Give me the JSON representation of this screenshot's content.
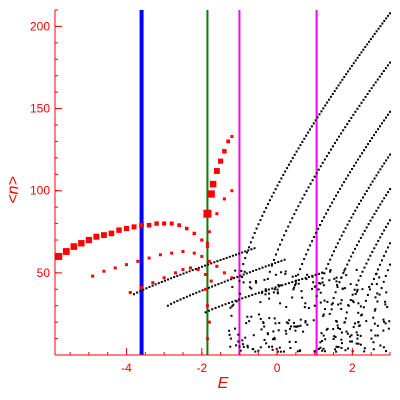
{
  "chart_data": {
    "type": "scatter",
    "xlabel": "E",
    "ylabel": "<n>",
    "xlim": [
      -5.9,
      3.0
    ],
    "ylim": [
      0,
      210
    ],
    "xticks": [
      -4,
      -2,
      0,
      2
    ],
    "yticks": [
      50,
      100,
      150,
      200
    ],
    "grid": false,
    "colors": {
      "axis": "#ff0000",
      "primary": "#000000",
      "highlight": "#ff0000",
      "blue_line": "#0000ff",
      "green_line": "#008000",
      "magenta_line": "#ff00ff"
    },
    "vlines": [
      {
        "x": -3.6,
        "color": "#0000ff",
        "width": 4
      },
      {
        "x": -1.85,
        "color": "#008000",
        "width": 2
      },
      {
        "x": -1.0,
        "color": "#ff00ff",
        "width": 2
      },
      {
        "x": 1.05,
        "color": "#ff00ff",
        "width": 2
      }
    ],
    "series": [
      {
        "color": "#000000",
        "marker_size": 2,
        "curves": [
          {
            "x_start": -1.0,
            "y_start": 45,
            "x_end": 3.0,
            "y_end": 208,
            "n": 80
          },
          {
            "x_start": -0.3,
            "y_start": 40,
            "x_end": 3.0,
            "y_end": 178,
            "n": 62
          },
          {
            "x_start": 0.4,
            "y_start": 35,
            "x_end": 3.0,
            "y_end": 148,
            "n": 50
          },
          {
            "x_start": 1.0,
            "y_start": 30,
            "x_end": 3.0,
            "y_end": 122,
            "n": 40
          },
          {
            "x_start": 1.4,
            "y_start": 25,
            "x_end": 3.0,
            "y_end": 101,
            "n": 32
          },
          {
            "x_start": 1.8,
            "y_start": 20,
            "x_end": 3.0,
            "y_end": 82,
            "n": 24
          },
          {
            "x_start": 2.2,
            "y_start": 18,
            "x_end": 3.0,
            "y_end": 68,
            "n": 16
          },
          {
            "x_start": 2.5,
            "y_start": 15,
            "x_end": 3.0,
            "y_end": 55,
            "n": 10
          }
        ],
        "lower_curves": [
          {
            "x_start": -3.8,
            "y_start": 37,
            "x_end": -0.6,
            "y_end": 65,
            "n": 40
          },
          {
            "x_start": -2.9,
            "y_start": 30,
            "x_end": 0.2,
            "y_end": 58,
            "n": 38
          },
          {
            "x_start": -1.9,
            "y_start": 26,
            "x_end": 1.2,
            "y_end": 50,
            "n": 36
          }
        ],
        "scatter_region": {
          "x_min": -1.3,
          "x_max": 3.0,
          "y_min": 2,
          "y_max": 52,
          "n": 260
        }
      },
      {
        "color": "#ff0000",
        "branches": [
          {
            "points": [
              [
                -5.8,
                60
              ],
              [
                -5.6,
                63
              ],
              [
                -5.4,
                66
              ],
              [
                -5.2,
                68
              ],
              [
                -5.0,
                70
              ],
              [
                -4.8,
                72
              ],
              [
                -4.6,
                73
              ],
              [
                -4.4,
                74
              ],
              [
                -4.2,
                76
              ],
              [
                -4.0,
                77
              ],
              [
                -3.8,
                78
              ],
              [
                -3.6,
                79
              ],
              [
                -3.4,
                79
              ],
              [
                -3.2,
                80
              ],
              [
                -3.0,
                80
              ],
              [
                -2.8,
                80
              ],
              [
                -2.6,
                79
              ],
              [
                -2.4,
                77
              ],
              [
                -2.2,
                74
              ],
              [
                -2.0,
                70
              ],
              [
                -1.85,
                66
              ]
            ],
            "size_start": 7,
            "size_end": 3
          },
          {
            "points": [
              [
                -4.9,
                48
              ],
              [
                -4.6,
                51
              ],
              [
                -4.3,
                53
              ],
              [
                -4.0,
                55
              ],
              [
                -3.7,
                57
              ],
              [
                -3.4,
                59
              ],
              [
                -3.1,
                61
              ],
              [
                -2.8,
                62
              ],
              [
                -2.5,
                63
              ],
              [
                -2.2,
                62
              ],
              [
                -2.0,
                60
              ],
              [
                -1.8,
                57
              ],
              [
                -1.6,
                54
              ],
              [
                -1.4,
                50
              ],
              [
                -1.2,
                47
              ]
            ],
            "size_start": 3,
            "size_end": 3
          },
          {
            "points": [
              [
                -3.9,
                38
              ],
              [
                -3.6,
                41
              ],
              [
                -3.3,
                44
              ],
              [
                -3.0,
                47
              ],
              [
                -2.7,
                50
              ],
              [
                -2.5,
                52
              ],
              [
                -2.3,
                53
              ],
              [
                -2.1,
                52
              ],
              [
                -1.9,
                49
              ],
              [
                -1.75,
                45
              ]
            ],
            "size_start": 3,
            "size_end": 3
          },
          {
            "points": [
              [
                -1.85,
                86
              ],
              [
                -1.75,
                98
              ],
              [
                -1.7,
                104
              ],
              [
                -1.6,
                112
              ],
              [
                -1.5,
                118
              ],
              [
                -1.4,
                124
              ],
              [
                -1.3,
                130
              ],
              [
                -1.2,
                133
              ]
            ],
            "size_start": 8,
            "size_end": 3
          },
          {
            "points": [
              [
                -1.85,
                68
              ],
              [
                -1.8,
                75
              ],
              [
                -1.6,
                86
              ],
              [
                -1.4,
                95
              ],
              [
                -1.2,
                100
              ]
            ],
            "size_start": 3,
            "size_end": 3
          },
          {
            "points": [
              [
                -1.9,
                40
              ],
              [
                -1.85,
                30
              ],
              [
                -1.8,
                20
              ],
              [
                -1.85,
                10
              ]
            ],
            "size_start": 3,
            "size_end": 3
          }
        ]
      }
    ]
  }
}
